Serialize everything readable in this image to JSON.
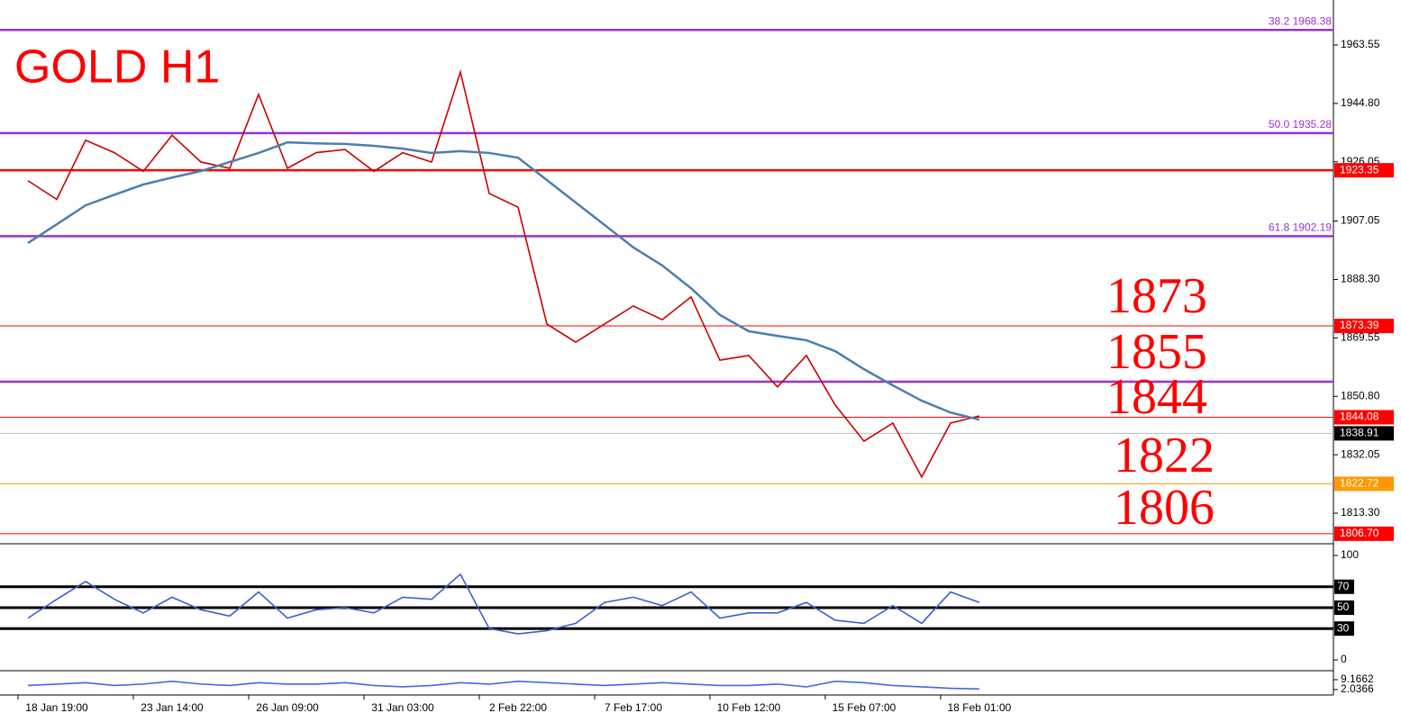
{
  "chart_data": [
    {
      "type": "line",
      "title": "GOLD H1",
      "series": [
        {
          "color": "#cc0000",
          "values": [
            1920.0,
            1914.0,
            1933.0,
            1929.0,
            1923.0,
            1934.6,
            1926.0,
            1924.0,
            1947.7,
            1924.0,
            1929.0,
            1930.0,
            1923.0,
            1929.0,
            1926.0,
            1954.9,
            1915.9,
            1911.5,
            1874.0,
            1868.2,
            1874.0,
            1879.8,
            1875.4,
            1882.7,
            1862.4,
            1863.9,
            1853.8,
            1863.9,
            1848.0,
            1836.4,
            1842.2,
            1824.9,
            1842.2,
            1844.5
          ]
        },
        {
          "color": "#4a7fb0",
          "values": [
            1900.0,
            1906.0,
            1912.1,
            1915.5,
            1918.8,
            1921.0,
            1923.1,
            1926.0,
            1928.9,
            1932.3,
            1932.0,
            1931.8,
            1931.2,
            1930.3,
            1928.9,
            1929.5,
            1928.9,
            1927.4,
            1920.2,
            1913.0,
            1905.8,
            1898.6,
            1892.8,
            1885.5,
            1876.9,
            1871.7,
            1870.2,
            1868.8,
            1865.3,
            1859.5,
            1854.3,
            1849.4,
            1845.6,
            1843.3
          ]
        }
      ],
      "ylim": [
        1803.77,
        1978.0
      ],
      "yticks": [
        {
          "value": 1963.55,
          "label": "1963.55"
        },
        {
          "value": 1944.8,
          "label": "1944.80"
        },
        {
          "value": 1926.05,
          "label": "1926.05"
        },
        {
          "value": 1907.05,
          "label": "1907.05"
        },
        {
          "value": 1888.3,
          "label": "1888.30"
        },
        {
          "value": 1869.55,
          "label": "1869.55"
        },
        {
          "value": 1850.8,
          "label": "1850.80"
        },
        {
          "value": 1832.05,
          "label": "1832.05"
        },
        {
          "value": 1813.3,
          "label": "1813.30"
        }
      ],
      "levels": [
        {
          "value": 1968.38,
          "label": "38.2 1968.38",
          "color": "#9933cc",
          "style": "fib"
        },
        {
          "value": 1935.28,
          "label": "50.0 1935.28",
          "color": "#9933cc",
          "style": "fib"
        },
        {
          "value": 1902.19,
          "label": "61.8  1902.19",
          "color": "#9933cc",
          "style": "fib"
        },
        {
          "value": 1855.49,
          "color": "#9933cc",
          "style": "fib"
        },
        {
          "value": 1923.35,
          "label": "1923.35",
          "color": "#ff0000",
          "style": "box"
        },
        {
          "value": 1873.39,
          "label": "1873.39",
          "color": "#ff0000",
          "style": "box"
        },
        {
          "value": 1844.08,
          "label": "1844.08",
          "color": "#ff0000",
          "style": "box"
        },
        {
          "value": 1838.91,
          "label": "1838.91",
          "color": "#000000",
          "style": "box"
        },
        {
          "value": 1822.72,
          "label": "1822.72",
          "color": "#ff9900",
          "style": "box"
        },
        {
          "value": 1806.7,
          "label": "1806.70",
          "color": "#ff0000",
          "style": "box"
        }
      ],
      "annotations": [
        "1873",
        "1855",
        "1844",
        "1822",
        "1806"
      ]
    },
    {
      "type": "line",
      "series": [
        {
          "color": "#3a5fcd",
          "values": [
            40,
            58,
            75,
            58,
            45,
            60,
            48,
            42,
            65,
            40,
            48,
            50,
            45,
            60,
            58,
            82,
            30,
            25,
            28,
            35,
            55,
            60,
            52,
            65,
            40,
            45,
            45,
            55,
            38,
            35,
            52,
            35,
            65,
            55
          ]
        }
      ],
      "ylim": [
        -10.3,
        110.3
      ],
      "yticks": [
        0,
        100
      ],
      "levels": [
        70,
        50,
        30
      ]
    },
    {
      "type": "line",
      "categories": [
        null,
        "18 Jan 19:00",
        null,
        null,
        null,
        "23 Jan 14:00",
        null,
        null,
        null,
        "26 Jan 09:00",
        null,
        null,
        null,
        "31 Jan 03:00",
        null,
        null,
        null,
        "2 Feb 22:00",
        null,
        null,
        null,
        "7 Feb 17:00",
        null,
        null,
        null,
        "10 Feb 12:00",
        null,
        null,
        null,
        "15 Feb 07:00",
        null,
        null,
        null,
        "18 Feb 01:00"
      ],
      "series": [
        {
          "color": "#4169e1",
          "values": [
            5,
            6,
            7,
            5,
            6,
            8,
            6,
            5,
            7,
            6,
            6,
            7,
            5,
            4,
            5,
            7,
            6,
            8,
            7,
            6,
            5,
            6,
            7,
            6,
            5,
            5,
            6,
            4,
            8,
            7,
            5,
            4,
            3,
            2.5
          ]
        }
      ],
      "ylim": [
        -1.85,
        15.65
      ],
      "yticks": [
        9.1662,
        2.0366
      ]
    }
  ]
}
